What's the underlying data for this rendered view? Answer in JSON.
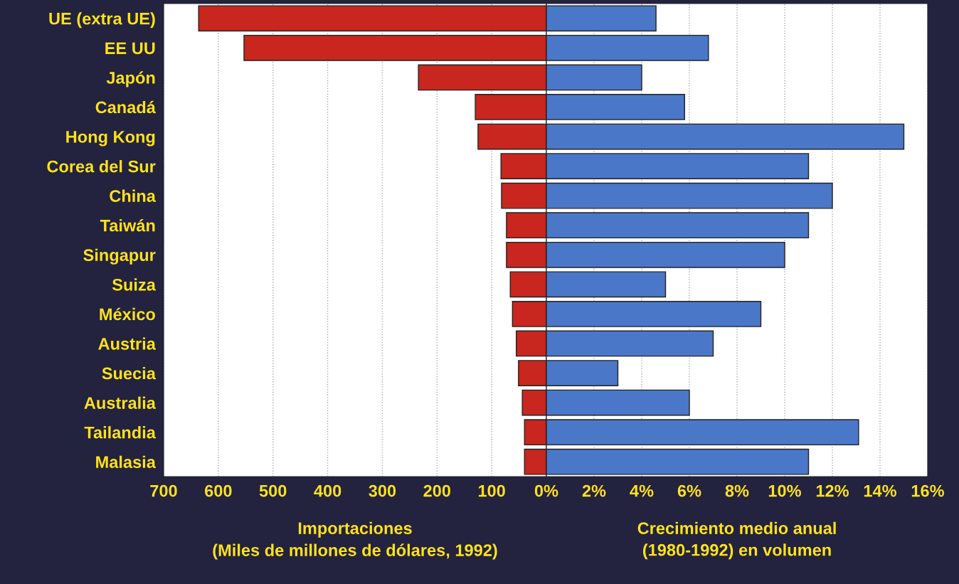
{
  "chart_data": [
    {
      "type": "bar",
      "orientation": "horizontal",
      "xlabel": "Importaciones\n(Miles de millones de dólares, 1992)",
      "categories": [
        "UE (extra UE)",
        "EE UU",
        "Japón",
        "Canadá",
        "Hong Kong",
        "Corea del Sur",
        "China",
        "Taiwán",
        "Singapur",
        "Suiza",
        "México",
        "Austria",
        "Suecia",
        "Australia",
        "Tailandia",
        "Malasia"
      ],
      "values": [
        636,
        553,
        234,
        130,
        125,
        83,
        82,
        73,
        73,
        66,
        62,
        55,
        51,
        44,
        40,
        40
      ],
      "color": "#c8261e",
      "xlim": [
        700,
        0
      ],
      "xticks": [
        700,
        600,
        500,
        400,
        300,
        200,
        100,
        {
          "value": 0,
          "label": null
        }
      ],
      "grid": "x"
    },
    {
      "type": "bar",
      "orientation": "horizontal",
      "xlabel": "Crecimiento medio anual\n(1980-1992) en volumen",
      "categories": [
        null,
        null,
        null,
        null,
        null,
        null,
        null,
        null,
        null,
        null,
        null,
        null,
        null,
        null,
        null,
        null
      ],
      "values": [
        4.6,
        6.8,
        4.0,
        5.8,
        15.0,
        11.0,
        12.0,
        11.0,
        10.0,
        5.0,
        9.0,
        7.0,
        3.0,
        6.0,
        13.1,
        11.0
      ],
      "color": "#4a77c8",
      "xlim": [
        0,
        16
      ],
      "xticks": [
        {
          "value": 0,
          "label": "0%"
        },
        {
          "value": 2,
          "label": "2%"
        },
        {
          "value": 4,
          "label": "4%"
        },
        {
          "value": 6,
          "label": "6%"
        },
        {
          "value": 8,
          "label": "8%"
        },
        {
          "value": 10,
          "label": "10%"
        },
        {
          "value": 12,
          "label": "12%"
        },
        {
          "value": 14,
          "label": "14%"
        },
        {
          "value": 16,
          "label": "16%"
        }
      ],
      "grid": "x",
      "tick_labels": "x"
    }
  ]
}
